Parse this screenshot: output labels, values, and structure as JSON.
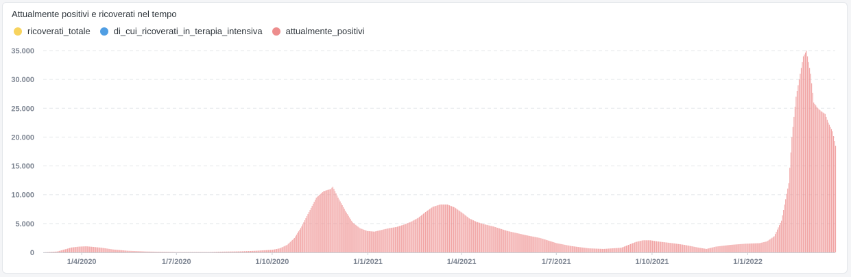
{
  "chart_data": {
    "type": "bar",
    "title": "Attualmente positivi e ricoverati nel tempo",
    "series": [
      {
        "name": "ricoverati_totale",
        "color": "#f7d35e"
      },
      {
        "name": "di_cui_ricoverati_in_terapia_intensiva",
        "color": "#509ee3"
      },
      {
        "name": "attualmente_positivi",
        "color": "#ed8d8d",
        "points": [
          [
            "2020-02-24",
            10
          ],
          [
            "2020-03-08",
            150
          ],
          [
            "2020-03-15",
            500
          ],
          [
            "2020-03-22",
            850
          ],
          [
            "2020-03-29",
            1000
          ],
          [
            "2020-04-05",
            1050
          ],
          [
            "2020-04-12",
            950
          ],
          [
            "2020-04-20",
            800
          ],
          [
            "2020-05-01",
            500
          ],
          [
            "2020-05-15",
            280
          ],
          [
            "2020-06-01",
            150
          ],
          [
            "2020-07-01",
            60
          ],
          [
            "2020-08-01",
            60
          ],
          [
            "2020-08-15",
            130
          ],
          [
            "2020-09-01",
            180
          ],
          [
            "2020-09-15",
            280
          ],
          [
            "2020-10-01",
            450
          ],
          [
            "2020-10-08",
            700
          ],
          [
            "2020-10-15",
            1300
          ],
          [
            "2020-10-22",
            2500
          ],
          [
            "2020-10-29",
            4500
          ],
          [
            "2020-11-05",
            7000
          ],
          [
            "2020-11-12",
            9500
          ],
          [
            "2020-11-19",
            10600
          ],
          [
            "2020-11-26",
            11000
          ],
          [
            "2020-11-28",
            11400
          ],
          [
            "2020-12-03",
            9500
          ],
          [
            "2020-12-10",
            7200
          ],
          [
            "2020-12-17",
            5200
          ],
          [
            "2020-12-24",
            4200
          ],
          [
            "2020-12-31",
            3700
          ],
          [
            "2021-01-07",
            3600
          ],
          [
            "2021-01-14",
            3900
          ],
          [
            "2021-01-21",
            4200
          ],
          [
            "2021-01-28",
            4400
          ],
          [
            "2021-02-04",
            4800
          ],
          [
            "2021-02-11",
            5300
          ],
          [
            "2021-02-18",
            6000
          ],
          [
            "2021-02-25",
            7000
          ],
          [
            "2021-03-04",
            7900
          ],
          [
            "2021-03-11",
            8300
          ],
          [
            "2021-03-18",
            8300
          ],
          [
            "2021-03-25",
            7800
          ],
          [
            "2021-04-01",
            6900
          ],
          [
            "2021-04-08",
            5900
          ],
          [
            "2021-04-15",
            5300
          ],
          [
            "2021-04-22",
            4900
          ],
          [
            "2021-05-01",
            4500
          ],
          [
            "2021-05-15",
            3700
          ],
          [
            "2021-06-01",
            3000
          ],
          [
            "2021-06-15",
            2500
          ],
          [
            "2021-07-01",
            1600
          ],
          [
            "2021-07-15",
            1100
          ],
          [
            "2021-08-01",
            700
          ],
          [
            "2021-08-15",
            600
          ],
          [
            "2021-09-01",
            800
          ],
          [
            "2021-09-08",
            1300
          ],
          [
            "2021-09-15",
            1800
          ],
          [
            "2021-09-22",
            2100
          ],
          [
            "2021-09-29",
            2100
          ],
          [
            "2021-10-06",
            1900
          ],
          [
            "2021-10-20",
            1600
          ],
          [
            "2021-11-01",
            1300
          ],
          [
            "2021-11-15",
            800
          ],
          [
            "2021-11-22",
            600
          ],
          [
            "2021-12-01",
            1000
          ],
          [
            "2021-12-15",
            1300
          ],
          [
            "2021-12-29",
            1500
          ],
          [
            "2022-01-12",
            1600
          ],
          [
            "2022-01-19",
            1900
          ],
          [
            "2022-01-26",
            2800
          ],
          [
            "2022-02-02",
            5500
          ],
          [
            "2022-02-09",
            12000
          ],
          [
            "2022-02-12",
            20000
          ],
          [
            "2022-02-16",
            27000
          ],
          [
            "2022-02-19",
            30000
          ],
          [
            "2022-02-23",
            34000
          ],
          [
            "2022-02-26",
            35000
          ],
          [
            "2022-03-02",
            31000
          ],
          [
            "2022-03-05",
            26000
          ],
          [
            "2022-03-09",
            25000
          ],
          [
            "2022-03-12",
            24500
          ],
          [
            "2022-03-16",
            24000
          ],
          [
            "2022-03-19",
            22500
          ],
          [
            "2022-03-23",
            21000
          ],
          [
            "2022-03-26",
            18500
          ]
        ]
      }
    ],
    "y_ticks": [
      "0",
      "5.000",
      "10.000",
      "15.000",
      "20.000",
      "25.000",
      "30.000",
      "35.000"
    ],
    "y_tick_values": [
      0,
      5000,
      10000,
      15000,
      20000,
      25000,
      30000,
      35000
    ],
    "ylim": [
      0,
      35000
    ],
    "x_ticks": [
      {
        "date": "2020-04-01",
        "label": "1/4/2020"
      },
      {
        "date": "2020-07-01",
        "label": "1/7/2020"
      },
      {
        "date": "2020-10-01",
        "label": "1/10/2020"
      },
      {
        "date": "2021-01-01",
        "label": "1/1/2021"
      },
      {
        "date": "2021-04-01",
        "label": "1/4/2021"
      },
      {
        "date": "2021-07-01",
        "label": "1/7/2021"
      },
      {
        "date": "2021-10-01",
        "label": "1/10/2021"
      },
      {
        "date": "2022-01-01",
        "label": "1/1/2022"
      }
    ],
    "xlim": [
      "2020-02-24",
      "2022-03-26"
    ],
    "grid": true
  }
}
